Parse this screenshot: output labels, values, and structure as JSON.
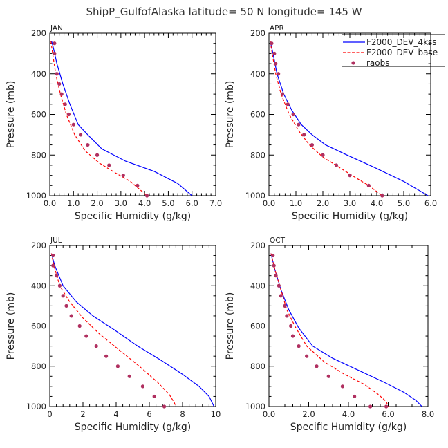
{
  "figure": {
    "title": "ShipP_GulfofAlaska  latitude= 50 N longitude= 145 W",
    "xlabel": "Specific Humidity (g/kg)",
    "ylabel": "Pressure (mb)"
  },
  "colors": {
    "blue": "#0000ff",
    "red": "#ff0000",
    "marker": "#b03060",
    "axis": "#000000"
  },
  "legend": {
    "entries": [
      {
        "label": "F2000_DEV_4kss",
        "style": "solid-line",
        "color": "#0000ff"
      },
      {
        "label": "F2000_DEV_base",
        "style": "dashed-line",
        "color": "#ff0000"
      },
      {
        "label": "raobs",
        "style": "dot-markers",
        "color": "#b03060"
      }
    ],
    "placement": "top-right of APR panel"
  },
  "chart_data": [
    {
      "type": "line",
      "panel": "JAN",
      "xlim": [
        0,
        7
      ],
      "ylim": [
        1000,
        200
      ],
      "xticks": [
        "0.0",
        "1.0",
        "2.0",
        "3.0",
        "4.0",
        "5.0",
        "6.0",
        "7.0"
      ],
      "xtick_values": [
        0,
        1,
        2,
        3,
        4,
        5,
        6,
        7
      ],
      "yticks": [
        "200",
        "400",
        "600",
        "800",
        "1000"
      ],
      "ytick_values": [
        200,
        400,
        600,
        800,
        1000
      ],
      "series": [
        {
          "name": "F2000_DEV_4kss",
          "style": "solid",
          "color": "#0000ff",
          "x": [
            0.08,
            0.15,
            0.3,
            0.55,
            0.85,
            1.2,
            1.6,
            2.2,
            3.2,
            4.4,
            5.4,
            6.0
          ],
          "y": [
            240,
            270,
            350,
            450,
            550,
            650,
            700,
            770,
            830,
            880,
            940,
            1000
          ]
        },
        {
          "name": "F2000_DEV_base",
          "style": "dashed",
          "color": "#ff0000",
          "x": [
            0.05,
            0.12,
            0.25,
            0.45,
            0.7,
            1.05,
            1.5,
            2.1,
            2.8,
            3.4,
            3.8,
            4.1
          ],
          "y": [
            240,
            300,
            400,
            500,
            600,
            700,
            780,
            840,
            890,
            930,
            970,
            1000
          ]
        },
        {
          "name": "raobs",
          "style": "markers",
          "color": "#b03060",
          "x": [
            0.2,
            0.2,
            0.3,
            0.4,
            0.5,
            0.65,
            0.8,
            1.0,
            1.3,
            1.6,
            2.0,
            2.5,
            3.1,
            3.7,
            4.1
          ],
          "y": [
            250,
            300,
            400,
            450,
            500,
            550,
            600,
            650,
            700,
            750,
            800,
            850,
            900,
            950,
            1000
          ]
        }
      ]
    },
    {
      "type": "line",
      "panel": "APR",
      "xlim": [
        0,
        6
      ],
      "ylim": [
        1000,
        200
      ],
      "xticks": [
        "0.0",
        "1.0",
        "2.0",
        "3.0",
        "4.0",
        "5.0",
        "6.0"
      ],
      "xtick_values": [
        0,
        1,
        2,
        3,
        4,
        5,
        6
      ],
      "yticks": [
        "200",
        "400",
        "600",
        "800",
        "1000"
      ],
      "ytick_values": [
        200,
        400,
        600,
        800,
        1000
      ],
      "series": [
        {
          "name": "F2000_DEV_4kss",
          "style": "solid",
          "color": "#0000ff",
          "x": [
            0.05,
            0.15,
            0.3,
            0.55,
            0.85,
            1.2,
            1.6,
            2.1,
            2.9,
            3.9,
            5.0,
            5.9
          ],
          "y": [
            240,
            300,
            400,
            500,
            580,
            650,
            700,
            750,
            800,
            860,
            930,
            1000
          ]
        },
        {
          "name": "F2000_DEV_base",
          "style": "dashed",
          "color": "#ff0000",
          "x": [
            0.05,
            0.12,
            0.25,
            0.45,
            0.75,
            1.1,
            1.5,
            2.0,
            2.6,
            3.2,
            3.7,
            4.2
          ],
          "y": [
            240,
            300,
            400,
            500,
            600,
            680,
            750,
            810,
            860,
            910,
            950,
            1000
          ]
        },
        {
          "name": "raobs",
          "style": "markers",
          "color": "#b03060",
          "x": [
            0.1,
            0.2,
            0.25,
            0.35,
            0.5,
            0.7,
            0.9,
            1.1,
            1.3,
            1.6,
            2.0,
            2.5,
            3.0,
            3.7,
            4.2
          ],
          "y": [
            250,
            300,
            350,
            400,
            500,
            550,
            600,
            650,
            700,
            750,
            800,
            850,
            900,
            950,
            1000
          ]
        }
      ]
    },
    {
      "type": "line",
      "panel": "JUL",
      "xlim": [
        0,
        10
      ],
      "ylim": [
        1000,
        200
      ],
      "xticks": [
        "0",
        "2",
        "4",
        "6",
        "8",
        "10"
      ],
      "xtick_values": [
        0,
        2,
        4,
        6,
        8,
        10
      ],
      "yticks": [
        "200",
        "400",
        "600",
        "800",
        "1000"
      ],
      "ytick_values": [
        200,
        400,
        600,
        800,
        1000
      ],
      "series": [
        {
          "name": "F2000_DEV_4kss",
          "style": "solid",
          "color": "#0000ff",
          "x": [
            0.1,
            0.3,
            0.8,
            1.6,
            2.6,
            3.9,
            5.3,
            6.7,
            8.0,
            9.0,
            9.6,
            9.9
          ],
          "y": [
            240,
            300,
            400,
            480,
            550,
            620,
            700,
            770,
            840,
            900,
            950,
            1000
          ]
        },
        {
          "name": "F2000_DEV_base",
          "style": "dashed",
          "color": "#ff0000",
          "x": [
            0.1,
            0.25,
            0.6,
            1.2,
            2.0,
            3.0,
            4.2,
            5.4,
            6.5,
            7.2,
            7.5,
            7.6
          ],
          "y": [
            240,
            300,
            400,
            480,
            560,
            640,
            720,
            800,
            880,
            940,
            980,
            1000
          ]
        },
        {
          "name": "raobs",
          "style": "markers",
          "color": "#b03060",
          "x": [
            0.2,
            0.2,
            0.4,
            0.6,
            0.8,
            1.0,
            1.3,
            1.8,
            2.2,
            2.8,
            3.4,
            4.1,
            4.8,
            5.6,
            6.3,
            6.9
          ],
          "y": [
            250,
            300,
            350,
            400,
            450,
            500,
            550,
            600,
            650,
            700,
            750,
            800,
            850,
            900,
            950,
            1000
          ]
        }
      ]
    },
    {
      "type": "line",
      "panel": "OCT",
      "xlim": [
        0,
        8
      ],
      "ylim": [
        1000,
        200
      ],
      "xticks": [
        "0.0",
        "2.0",
        "4.0",
        "6.0",
        "8.0"
      ],
      "xtick_values": [
        0,
        2,
        4,
        6,
        8
      ],
      "yticks": [
        "200",
        "400",
        "600",
        "800",
        "1000"
      ],
      "ytick_values": [
        200,
        400,
        600,
        800,
        1000
      ],
      "series": [
        {
          "name": "F2000_DEV_4kss",
          "style": "solid",
          "color": "#0000ff",
          "x": [
            0.1,
            0.3,
            0.6,
            1.0,
            1.5,
            2.2,
            3.2,
            4.5,
            5.8,
            6.8,
            7.4,
            7.7
          ],
          "y": [
            240,
            320,
            420,
            520,
            610,
            700,
            760,
            820,
            880,
            930,
            970,
            1000
          ]
        },
        {
          "name": "F2000_DEV_base",
          "style": "dashed",
          "color": "#ff0000",
          "x": [
            0.1,
            0.3,
            0.6,
            0.9,
            1.3,
            1.9,
            2.8,
            3.8,
            4.8,
            5.5,
            5.9,
            6.0
          ],
          "y": [
            240,
            320,
            420,
            520,
            600,
            700,
            780,
            840,
            890,
            940,
            975,
            1000
          ]
        },
        {
          "name": "raobs",
          "style": "markers",
          "color": "#b03060",
          "x": [
            0.2,
            0.25,
            0.35,
            0.5,
            0.6,
            0.8,
            0.9,
            1.1,
            1.2,
            1.5,
            1.9,
            2.4,
            3.0,
            3.7,
            4.3,
            5.1,
            5.9
          ],
          "y": [
            250,
            300,
            350,
            400,
            450,
            500,
            550,
            600,
            650,
            700,
            750,
            800,
            850,
            900,
            950,
            1000,
            1000
          ]
        }
      ]
    }
  ]
}
